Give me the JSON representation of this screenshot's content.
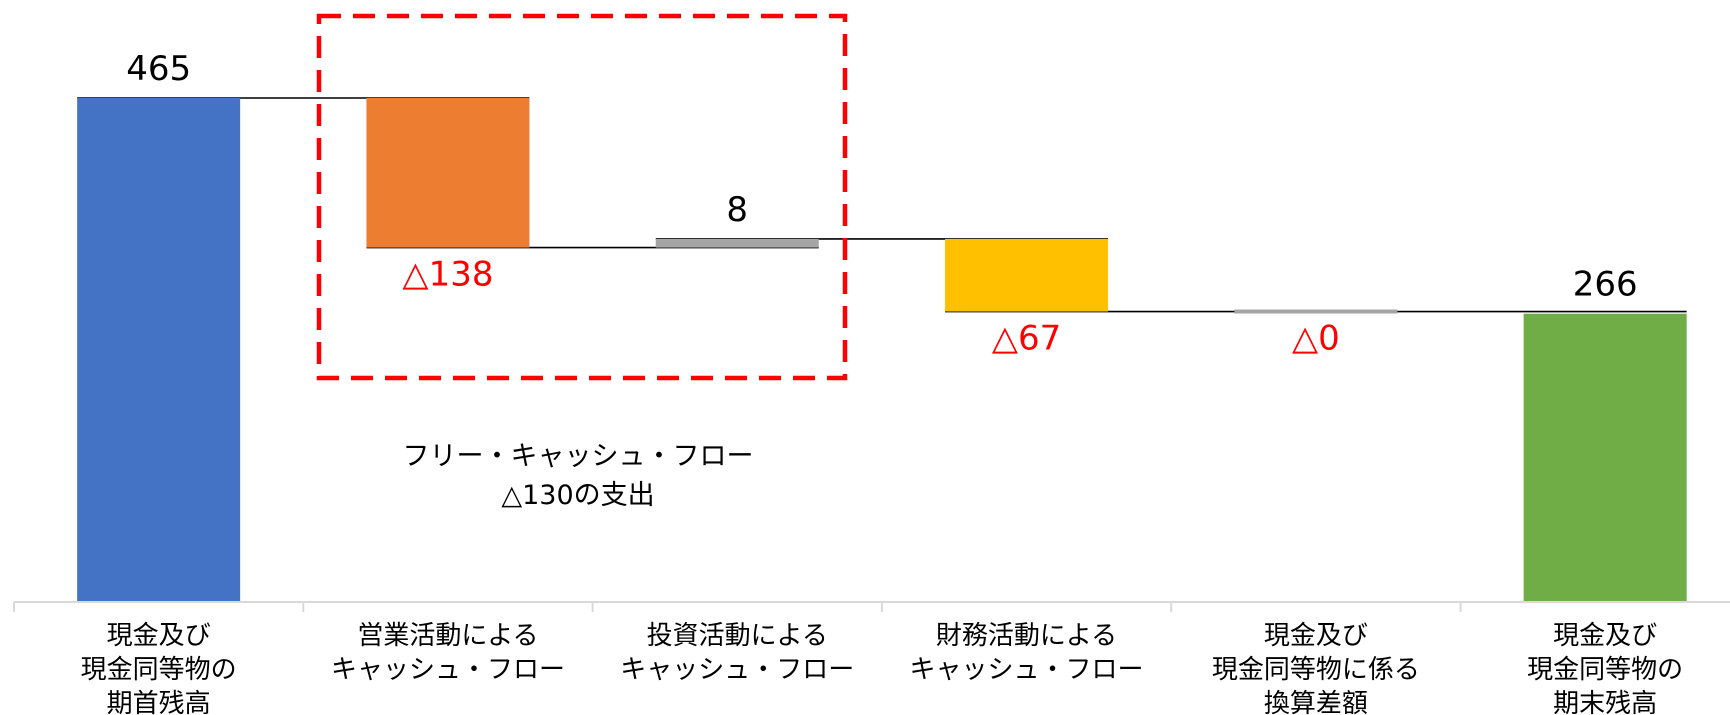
{
  "chart_data": {
    "type": "bar",
    "subtype": "waterfall",
    "categories": [
      [
        "現金及び",
        "現金同等物の",
        "期首残高"
      ],
      [
        "営業活動による",
        "キャッシュ・フロー"
      ],
      [
        "投資活動による",
        "キャッシュ・フロー"
      ],
      [
        "財務活動による",
        "キャッシュ・フロー"
      ],
      [
        "現金及び",
        "現金同等物に係る",
        "換算差額"
      ],
      [
        "現金及び",
        "現金同等物の",
        "期末残高"
      ]
    ],
    "values": [
      465,
      -138,
      8,
      -67,
      0,
      266
    ],
    "kinds": [
      "total",
      "delta",
      "delta",
      "delta",
      "delta",
      "total"
    ],
    "value_labels": [
      "465",
      "△138",
      "8",
      "△67",
      "△0",
      "266"
    ],
    "colors": [
      "#4472C4",
      "#ED7D31",
      "#A5A5A5",
      "#FFC000",
      "#A5A5A5",
      "#70AD47"
    ],
    "negative_label_color": "#FF0000",
    "ylim": [
      0,
      465
    ],
    "annotation": {
      "lines": [
        "フリー・キャッシュ・フロー",
        "△130の支出"
      ],
      "box_color": "#FF0000",
      "box_style": "dashed"
    },
    "grid": false,
    "legend": "none"
  }
}
